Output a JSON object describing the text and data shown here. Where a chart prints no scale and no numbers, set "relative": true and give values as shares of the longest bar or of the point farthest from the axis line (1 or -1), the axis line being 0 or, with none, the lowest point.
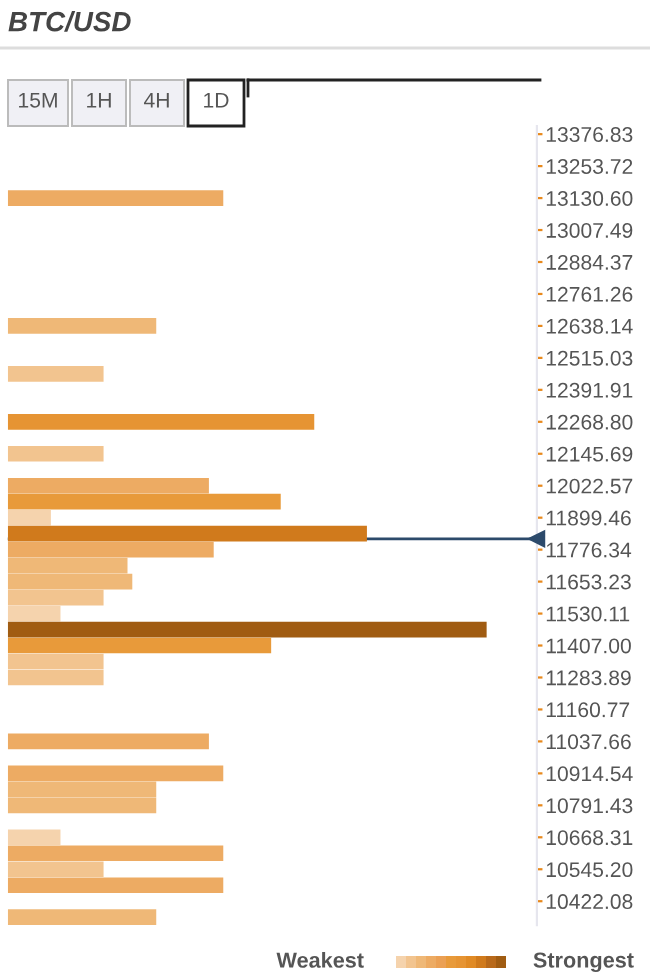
{
  "chart_data": {
    "type": "bar",
    "orientation": "horizontal",
    "relative": true,
    "title": "BTC/USD",
    "x": [
      13130.6,
      12638.14,
      12453.47,
      12268.8,
      12145.69,
      12022.57,
      11961.02,
      11899.46,
      11837.9,
      11776.34,
      11714.79,
      11653.23,
      11591.67,
      11530.11,
      11468.56,
      11407.0,
      11345.45,
      11283.89,
      11037.66,
      10914.54,
      10852.99,
      10791.43,
      10668.31,
      10606.76,
      10545.2,
      10483.64,
      10360.52
    ],
    "values": [
      0.45,
      0.31,
      0.2,
      0.64,
      0.2,
      0.42,
      0.57,
      0.09,
      0.75,
      0.43,
      0.25,
      0.26,
      0.2,
      0.11,
      1,
      0.55,
      0.2,
      0.2,
      0.42,
      0.45,
      0.31,
      0.31,
      0.11,
      0.45,
      0.2,
      0.45,
      0.31
    ],
    "colors": [
      "#edab63",
      "#efb877",
      "#f2c48f",
      "#e69433",
      "#f2c48f",
      "#edab63",
      "#e89a3a",
      "#f5d3ad",
      "#d07a1c",
      "#edab63",
      "#efb877",
      "#efb877",
      "#f2c48f",
      "#f5d3ad",
      "#a05c12",
      "#e89a3a",
      "#f2c48f",
      "#f2c48f",
      "#edab63",
      "#edab63",
      "#efb877",
      "#efb877",
      "#f5d3ad",
      "#edab63",
      "#f2c48f",
      "#edab63",
      "#efb877"
    ],
    "ylim": [
      10329.74,
      13407.61
    ],
    "yticks": [
      {
        "value": 13376.83,
        "label": "13376.83"
      },
      {
        "value": 13253.72,
        "label": "13253.72"
      },
      {
        "value": 13130.6,
        "label": "13130.60"
      },
      {
        "value": 13007.49,
        "label": "13007.49"
      },
      {
        "value": 12884.37,
        "label": "12884.37"
      },
      {
        "value": 12761.26,
        "label": "12761.26"
      },
      {
        "value": 12638.14,
        "label": "12638.14"
      },
      {
        "value": 12515.03,
        "label": "12515.03"
      },
      {
        "value": 12391.91,
        "label": "12391.91"
      },
      {
        "value": 12268.8,
        "label": "12268.80"
      },
      {
        "value": 12145.69,
        "label": "12145.69"
      },
      {
        "value": 12022.57,
        "label": "12022.57"
      },
      {
        "value": 11899.46,
        "label": "11899.46"
      },
      {
        "value": 11776.34,
        "label": "11776.34"
      },
      {
        "value": 11653.23,
        "label": "11653.23"
      },
      {
        "value": 11530.11,
        "label": "11530.11"
      },
      {
        "value": 11407.0,
        "label": "11407.00"
      },
      {
        "value": 11283.89,
        "label": "11283.89"
      },
      {
        "value": 11160.77,
        "label": "11160.77"
      },
      {
        "value": 11037.66,
        "label": "11037.66"
      },
      {
        "value": 10914.54,
        "label": "10914.54"
      },
      {
        "value": 10791.43,
        "label": "10791.43"
      },
      {
        "value": 10668.31,
        "label": "10668.31"
      },
      {
        "value": 10545.2,
        "label": "10545.20"
      },
      {
        "value": 10422.08,
        "label": "10422.08"
      }
    ],
    "ref_lines": [
      {
        "axis": "y",
        "value": 11818,
        "label": null,
        "color": "#2c4a6b"
      }
    ],
    "annotations": [
      "15M",
      "1H",
      "4H",
      "1D",
      "Weakest",
      "Strongest"
    ]
  }
}
